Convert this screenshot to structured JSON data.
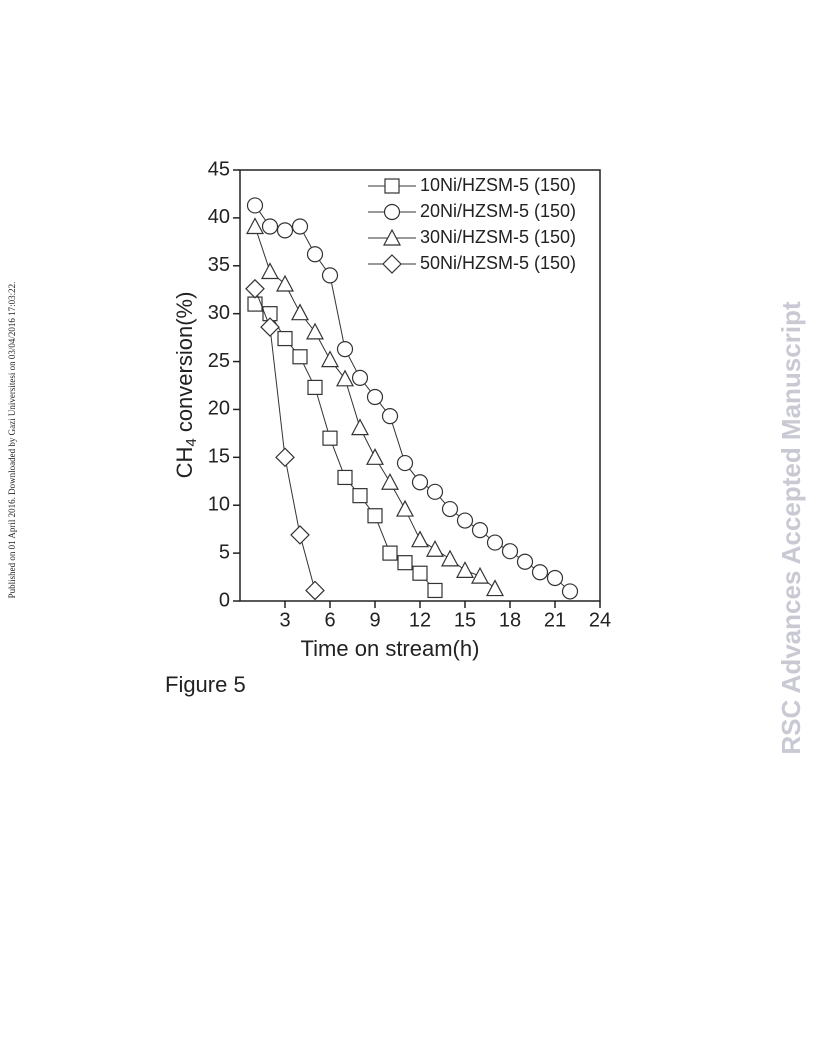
{
  "side_note": "Published on 01 April 2016. Downloaded by Gazi Universitesi on 03/04/2016 17:03:22.",
  "watermark": "RSC Advances Accepted Manuscript",
  "caption": "Figure 5",
  "chart_data": {
    "type": "line",
    "x_label": "Time on stream(h)",
    "y_label": [
      "CH",
      "4",
      " conversion(%)"
    ],
    "xlim": [
      0,
      24
    ],
    "xticks": [
      3,
      6,
      9,
      12,
      15,
      18,
      21,
      24
    ],
    "ylim": [
      0,
      45
    ],
    "yticks": [
      0,
      5,
      10,
      15,
      20,
      25,
      30,
      35,
      40,
      45
    ],
    "legend": "upper right",
    "series": [
      {
        "name": "10Ni/HZSM-5 (150)",
        "color": "#333333",
        "marker": "square",
        "x": [
          1,
          2,
          3,
          4,
          5,
          6,
          7,
          8,
          9,
          10,
          11,
          12,
          13
        ],
        "values": [
          31.0,
          30.0,
          27.4,
          25.5,
          22.3,
          17.0,
          12.9,
          11.0,
          8.9,
          5.0,
          4.0,
          2.9,
          1.1
        ]
      },
      {
        "name": "20Ni/HZSM-5 (150)",
        "color": "#333333",
        "marker": "circle",
        "x": [
          1,
          2,
          3,
          4,
          5,
          6,
          7,
          8,
          9,
          10,
          11,
          12,
          13,
          14,
          15,
          16,
          17,
          18,
          19,
          20,
          21,
          22
        ],
        "values": [
          41.3,
          39.1,
          38.7,
          39.1,
          36.2,
          34.0,
          26.3,
          23.3,
          21.3,
          19.3,
          14.4,
          12.4,
          11.4,
          9.6,
          8.4,
          7.4,
          6.1,
          5.2,
          4.1,
          3.0,
          2.4,
          1.0
        ]
      },
      {
        "name": "30Ni/HZSM-5 (150)",
        "color": "#333333",
        "marker": "triangle",
        "x": [
          1,
          2,
          3,
          4,
          5,
          6,
          7,
          8,
          9,
          10,
          11,
          12,
          13,
          14,
          15,
          16,
          17
        ],
        "values": [
          39.1,
          34.4,
          33.1,
          30.1,
          28.1,
          25.2,
          23.2,
          18.1,
          15.0,
          12.4,
          9.6,
          6.4,
          5.4,
          4.4,
          3.2,
          2.6,
          1.3
        ]
      },
      {
        "name": "50Ni/HZSM-5 (150)",
        "color": "#333333",
        "marker": "diamond",
        "x": [
          1,
          2,
          3,
          4,
          5
        ],
        "values": [
          32.6,
          28.6,
          15.0,
          6.9,
          1.1
        ]
      }
    ]
  }
}
